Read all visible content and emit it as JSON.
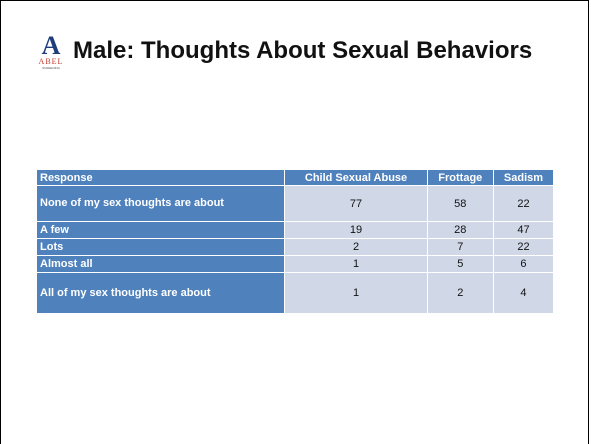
{
  "header": {
    "title": "Male: Thoughts About Sexual Behaviors",
    "logo": {
      "letter": "A",
      "name": "ABEL",
      "tagline": "SCREENING"
    }
  },
  "table": {
    "columns": [
      "Response",
      "Child Sexual Abuse",
      "Frottage",
      "Sadism"
    ],
    "rows": [
      [
        "None of my sex thoughts are about",
        77,
        58,
        22
      ],
      [
        "A few",
        19,
        28,
        47
      ],
      [
        "Lots",
        2,
        7,
        22
      ],
      [
        "Almost all",
        1,
        5,
        6
      ],
      [
        "All of my sex thoughts are about",
        1,
        2,
        4
      ]
    ]
  }
}
